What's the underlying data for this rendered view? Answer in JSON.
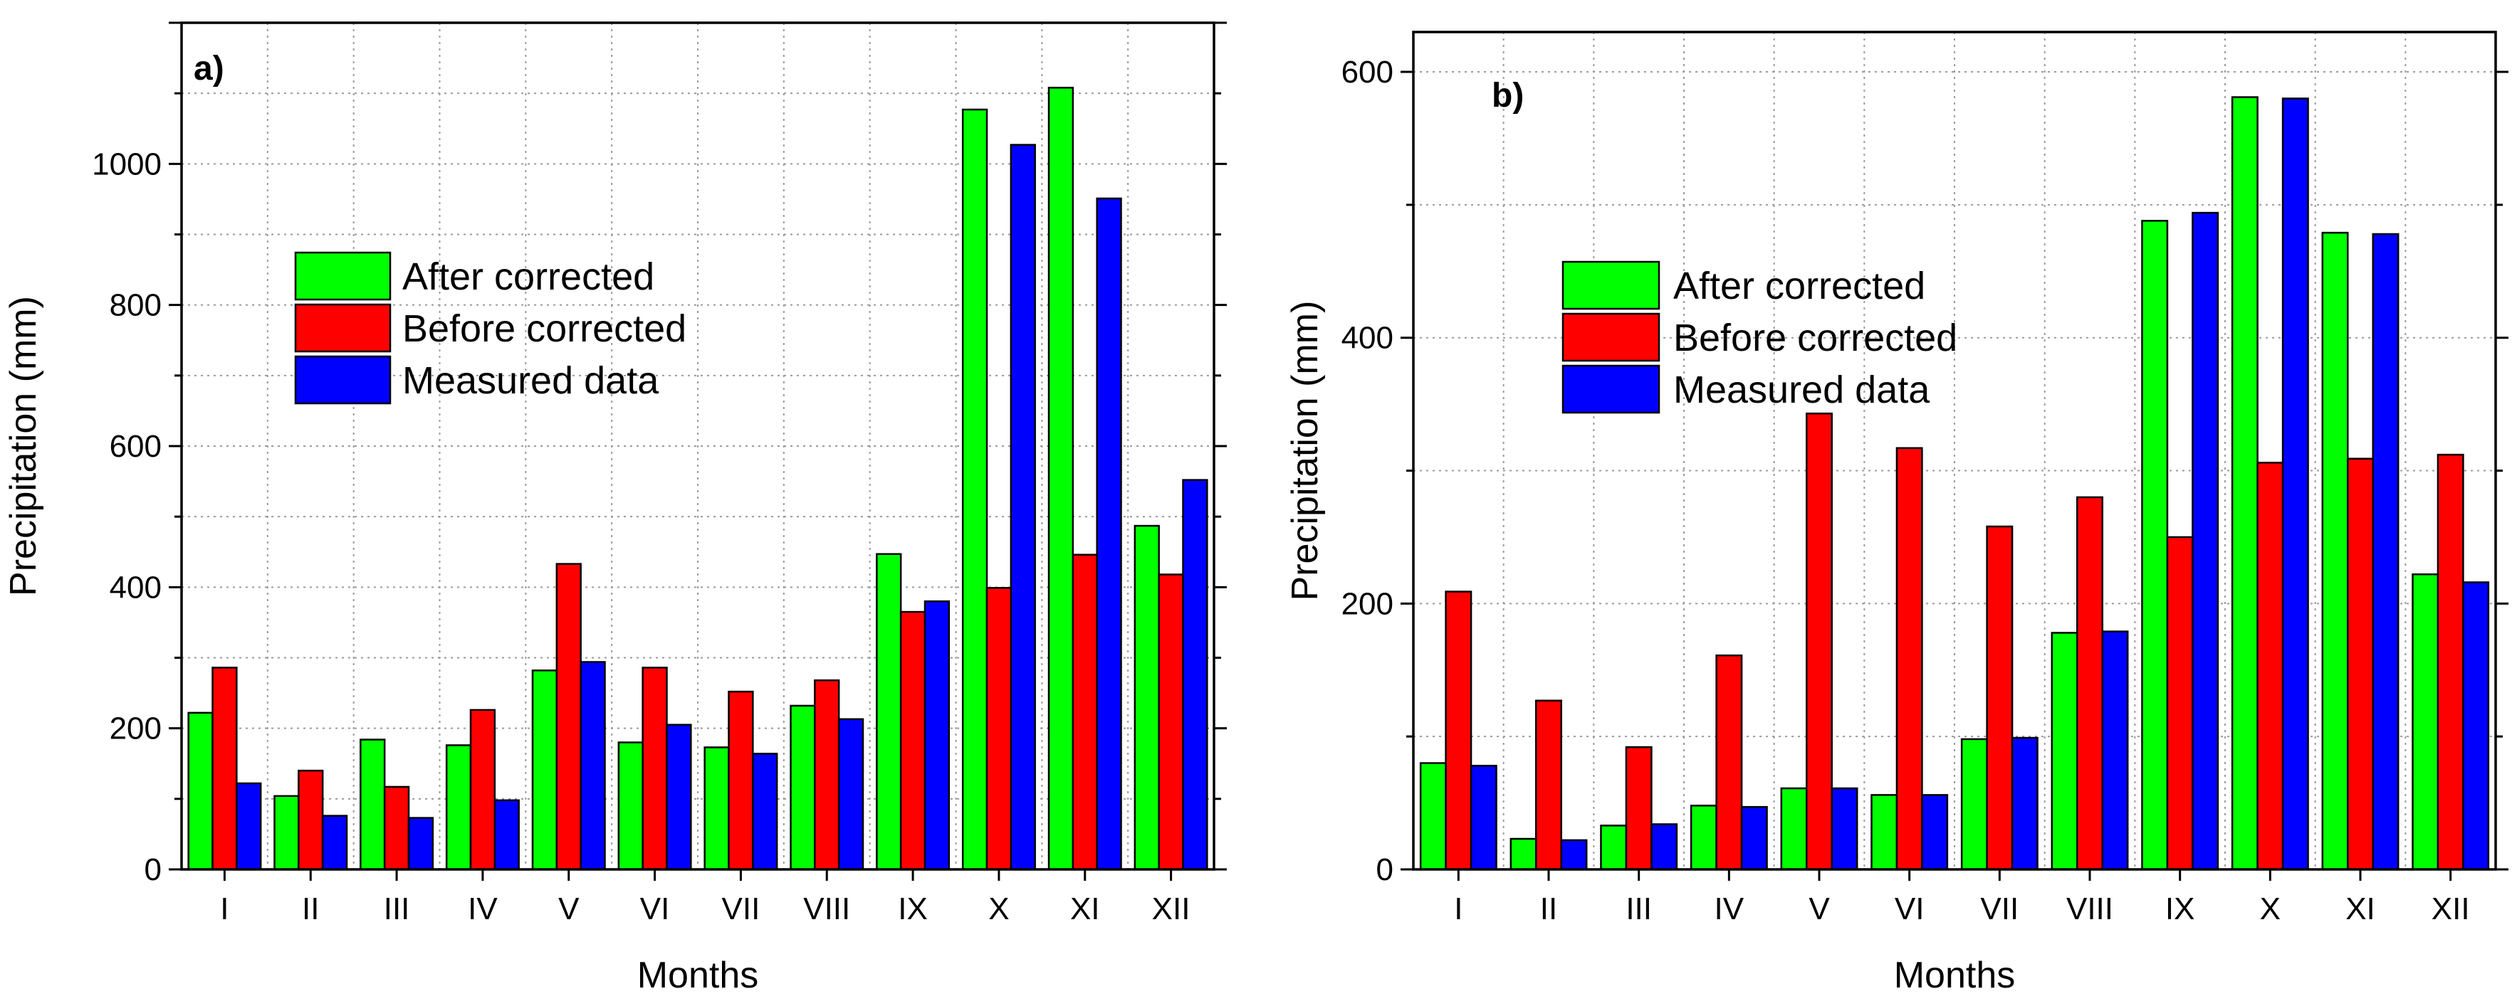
{
  "chart_data": [
    {
      "type": "bar",
      "panel_label": "a)",
      "xlabel": "Months",
      "ylabel": "Precipitation (mm)",
      "ylim": [
        0,
        1200
      ],
      "yticks": [
        0,
        200,
        400,
        600,
        800,
        1000
      ],
      "grid": true,
      "legend_position": "upper-left-center",
      "categories": [
        "I",
        "II",
        "III",
        "IV",
        "V",
        "VI",
        "VII",
        "VIII",
        "IX",
        "X",
        "XI",
        "XII"
      ],
      "series": [
        {
          "name": "After corrected",
          "color": "#00ff00",
          "values": [
            222,
            104,
            184,
            176,
            282,
            180,
            173,
            232,
            447,
            1077,
            1108,
            487
          ]
        },
        {
          "name": "Before corrected",
          "color": "#ff0000",
          "values": [
            286,
            140,
            117,
            226,
            433,
            286,
            252,
            268,
            365,
            399,
            446,
            418
          ]
        },
        {
          "name": "Measured data",
          "color": "#0000ff",
          "values": [
            122,
            76,
            73,
            98,
            294,
            205,
            164,
            213,
            380,
            1027,
            951,
            552
          ]
        }
      ]
    },
    {
      "type": "bar",
      "panel_label": "b)",
      "xlabel": "Months",
      "ylabel": "Precipitation (mm)",
      "ylim": [
        0,
        630
      ],
      "yticks": [
        0,
        200,
        400,
        600
      ],
      "grid": true,
      "legend_position": "upper-left-center",
      "categories": [
        "I",
        "II",
        "III",
        "IV",
        "V",
        "VI",
        "VII",
        "VIII",
        "IX",
        "X",
        "XI",
        "XII"
      ],
      "series": [
        {
          "name": "After corrected",
          "color": "#00ff00",
          "values": [
            80,
            23,
            33,
            48,
            61,
            56,
            98,
            178,
            488,
            581,
            479,
            222
          ]
        },
        {
          "name": "Before corrected",
          "color": "#ff0000",
          "values": [
            209,
            127,
            92,
            161,
            343,
            317,
            258,
            280,
            250,
            306,
            309,
            312
          ]
        },
        {
          "name": "Measured data",
          "color": "#0000ff",
          "values": [
            78,
            22,
            34,
            47,
            61,
            56,
            99,
            179,
            494,
            580,
            478,
            216
          ]
        }
      ]
    }
  ]
}
